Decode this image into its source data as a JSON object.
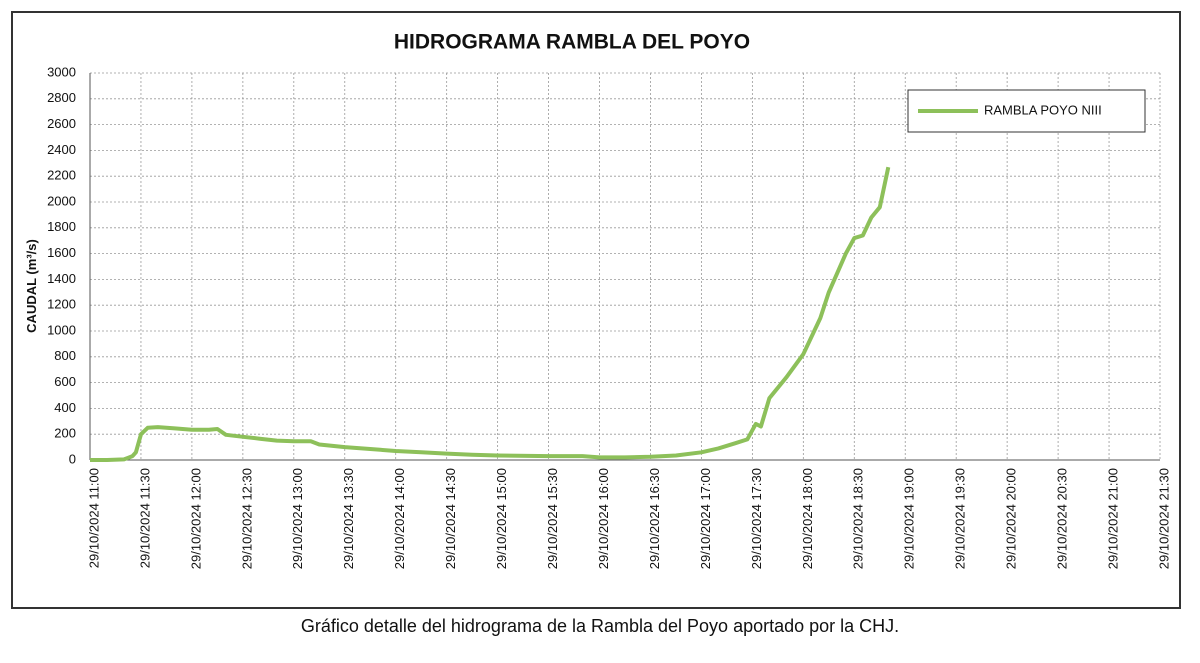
{
  "chart_data": {
    "type": "line",
    "title": "HIDROGRAMA RAMBLA DEL POYO",
    "y_label": "CAUDAL (m³/s)",
    "caption": "Gráfico detalle del hidrograma de la Rambla del Poyo aportado por la CHJ.",
    "x": [
      "29/10/2024 11:00",
      "29/10/2024 11:10",
      "29/10/2024 11:20",
      "29/10/2024 11:25",
      "29/10/2024 11:27",
      "29/10/2024 11:30",
      "29/10/2024 11:34",
      "29/10/2024 11:40",
      "29/10/2024 11:50",
      "29/10/2024 12:00",
      "29/10/2024 12:10",
      "29/10/2024 12:15",
      "29/10/2024 12:20",
      "29/10/2024 12:30",
      "29/10/2024 12:40",
      "29/10/2024 12:50",
      "29/10/2024 13:00",
      "29/10/2024 13:10",
      "29/10/2024 13:15",
      "29/10/2024 13:30",
      "29/10/2024 13:45",
      "29/10/2024 14:00",
      "29/10/2024 14:15",
      "29/10/2024 14:30",
      "29/10/2024 14:45",
      "29/10/2024 15:00",
      "29/10/2024 15:30",
      "29/10/2024 15:50",
      "29/10/2024 16:00",
      "29/10/2024 16:15",
      "29/10/2024 16:30",
      "29/10/2024 16:45",
      "29/10/2024 17:00",
      "29/10/2024 17:10",
      "29/10/2024 17:20",
      "29/10/2024 17:27",
      "29/10/2024 17:32",
      "29/10/2024 17:35",
      "29/10/2024 17:40",
      "29/10/2024 17:50",
      "29/10/2024 18:00",
      "29/10/2024 18:10",
      "29/10/2024 18:15",
      "29/10/2024 18:25",
      "29/10/2024 18:30",
      "29/10/2024 18:35",
      "29/10/2024 18:40",
      "29/10/2024 18:45",
      "29/10/2024 18:50"
    ],
    "series": [
      {
        "name": "RAMBLA POYO NIII",
        "color": "#8dc05a",
        "values": [
          0,
          0,
          5,
          30,
          60,
          200,
          250,
          255,
          245,
          235,
          235,
          240,
          195,
          180,
          165,
          150,
          145,
          145,
          120,
          100,
          85,
          70,
          60,
          50,
          40,
          35,
          30,
          30,
          20,
          20,
          25,
          35,
          60,
          90,
          130,
          160,
          280,
          260,
          480,
          640,
          820,
          1100,
          1300,
          1600,
          1720,
          1740,
          1880,
          1960,
          2270
        ]
      }
    ],
    "xlim": [
      "29/10/2024 11:00",
      "29/10/2024 21:30"
    ],
    "xticks": [
      "29/10/2024 11:00",
      "29/10/2024 11:30",
      "29/10/2024 12:00",
      "29/10/2024 12:30",
      "29/10/2024 13:00",
      "29/10/2024 13:30",
      "29/10/2024 14:00",
      "29/10/2024 14:30",
      "29/10/2024 15:00",
      "29/10/2024 15:30",
      "29/10/2024 16:00",
      "29/10/2024 16:30",
      "29/10/2024 17:00",
      "29/10/2024 17:30",
      "29/10/2024 18:00",
      "29/10/2024 18:30",
      "29/10/2024 19:00",
      "29/10/2024 19:30",
      "29/10/2024 20:00",
      "29/10/2024 20:30",
      "29/10/2024 21:00",
      "29/10/2024 21:30"
    ],
    "ylim": [
      0,
      3000
    ],
    "yticks": [
      0,
      200,
      400,
      600,
      800,
      1000,
      1200,
      1400,
      1600,
      1800,
      2000,
      2200,
      2400,
      2600,
      2800,
      3000
    ],
    "grid": true,
    "legend": "upper right"
  }
}
